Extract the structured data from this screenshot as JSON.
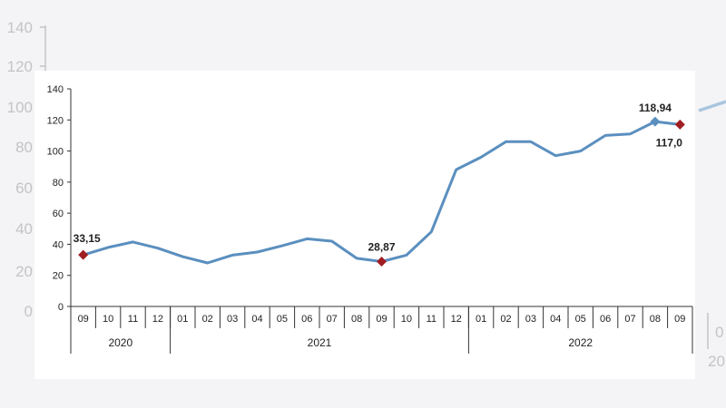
{
  "background": {
    "ticks": [
      "140",
      "120",
      "100",
      "80",
      "60",
      "40",
      "20",
      "0"
    ],
    "fragments": [
      "0",
      "20"
    ]
  },
  "chart_data": {
    "type": "line",
    "title": "",
    "xlabel": "",
    "ylabel": "",
    "ylim": [
      0,
      140
    ],
    "yticks": [
      0,
      20,
      40,
      60,
      80,
      100,
      120,
      140
    ],
    "grid": false,
    "months": [
      "09",
      "10",
      "11",
      "12",
      "01",
      "02",
      "03",
      "04",
      "05",
      "06",
      "07",
      "08",
      "09",
      "10",
      "11",
      "12",
      "01",
      "02",
      "03",
      "04",
      "05",
      "06",
      "07",
      "08",
      "09"
    ],
    "years": [
      {
        "label": "2020",
        "start": 0,
        "end": 3
      },
      {
        "label": "2021",
        "start": 4,
        "end": 15
      },
      {
        "label": "2022",
        "start": 16,
        "end": 24
      }
    ],
    "series": [
      {
        "color": "#5b8fbf",
        "values": [
          33.15,
          38,
          41.5,
          37.5,
          32,
          28,
          33,
          35,
          39,
          43.5,
          42,
          31,
          28.87,
          33,
          48,
          88,
          96,
          106,
          106,
          97,
          100,
          110,
          111,
          118.94,
          117.0
        ]
      }
    ],
    "annotations": [
      {
        "index": 0,
        "label": "33,15",
        "marker": "red-diamond",
        "color": "#a01d22"
      },
      {
        "index": 12,
        "label": "28,87",
        "marker": "red-diamond",
        "color": "#a01d22"
      },
      {
        "index": 23,
        "label": "118,94",
        "marker": "blue-diamond",
        "color": "#5b8fbf"
      },
      {
        "index": 24,
        "label": "117,0",
        "marker": "red-diamond",
        "color": "#a01d22"
      }
    ]
  }
}
